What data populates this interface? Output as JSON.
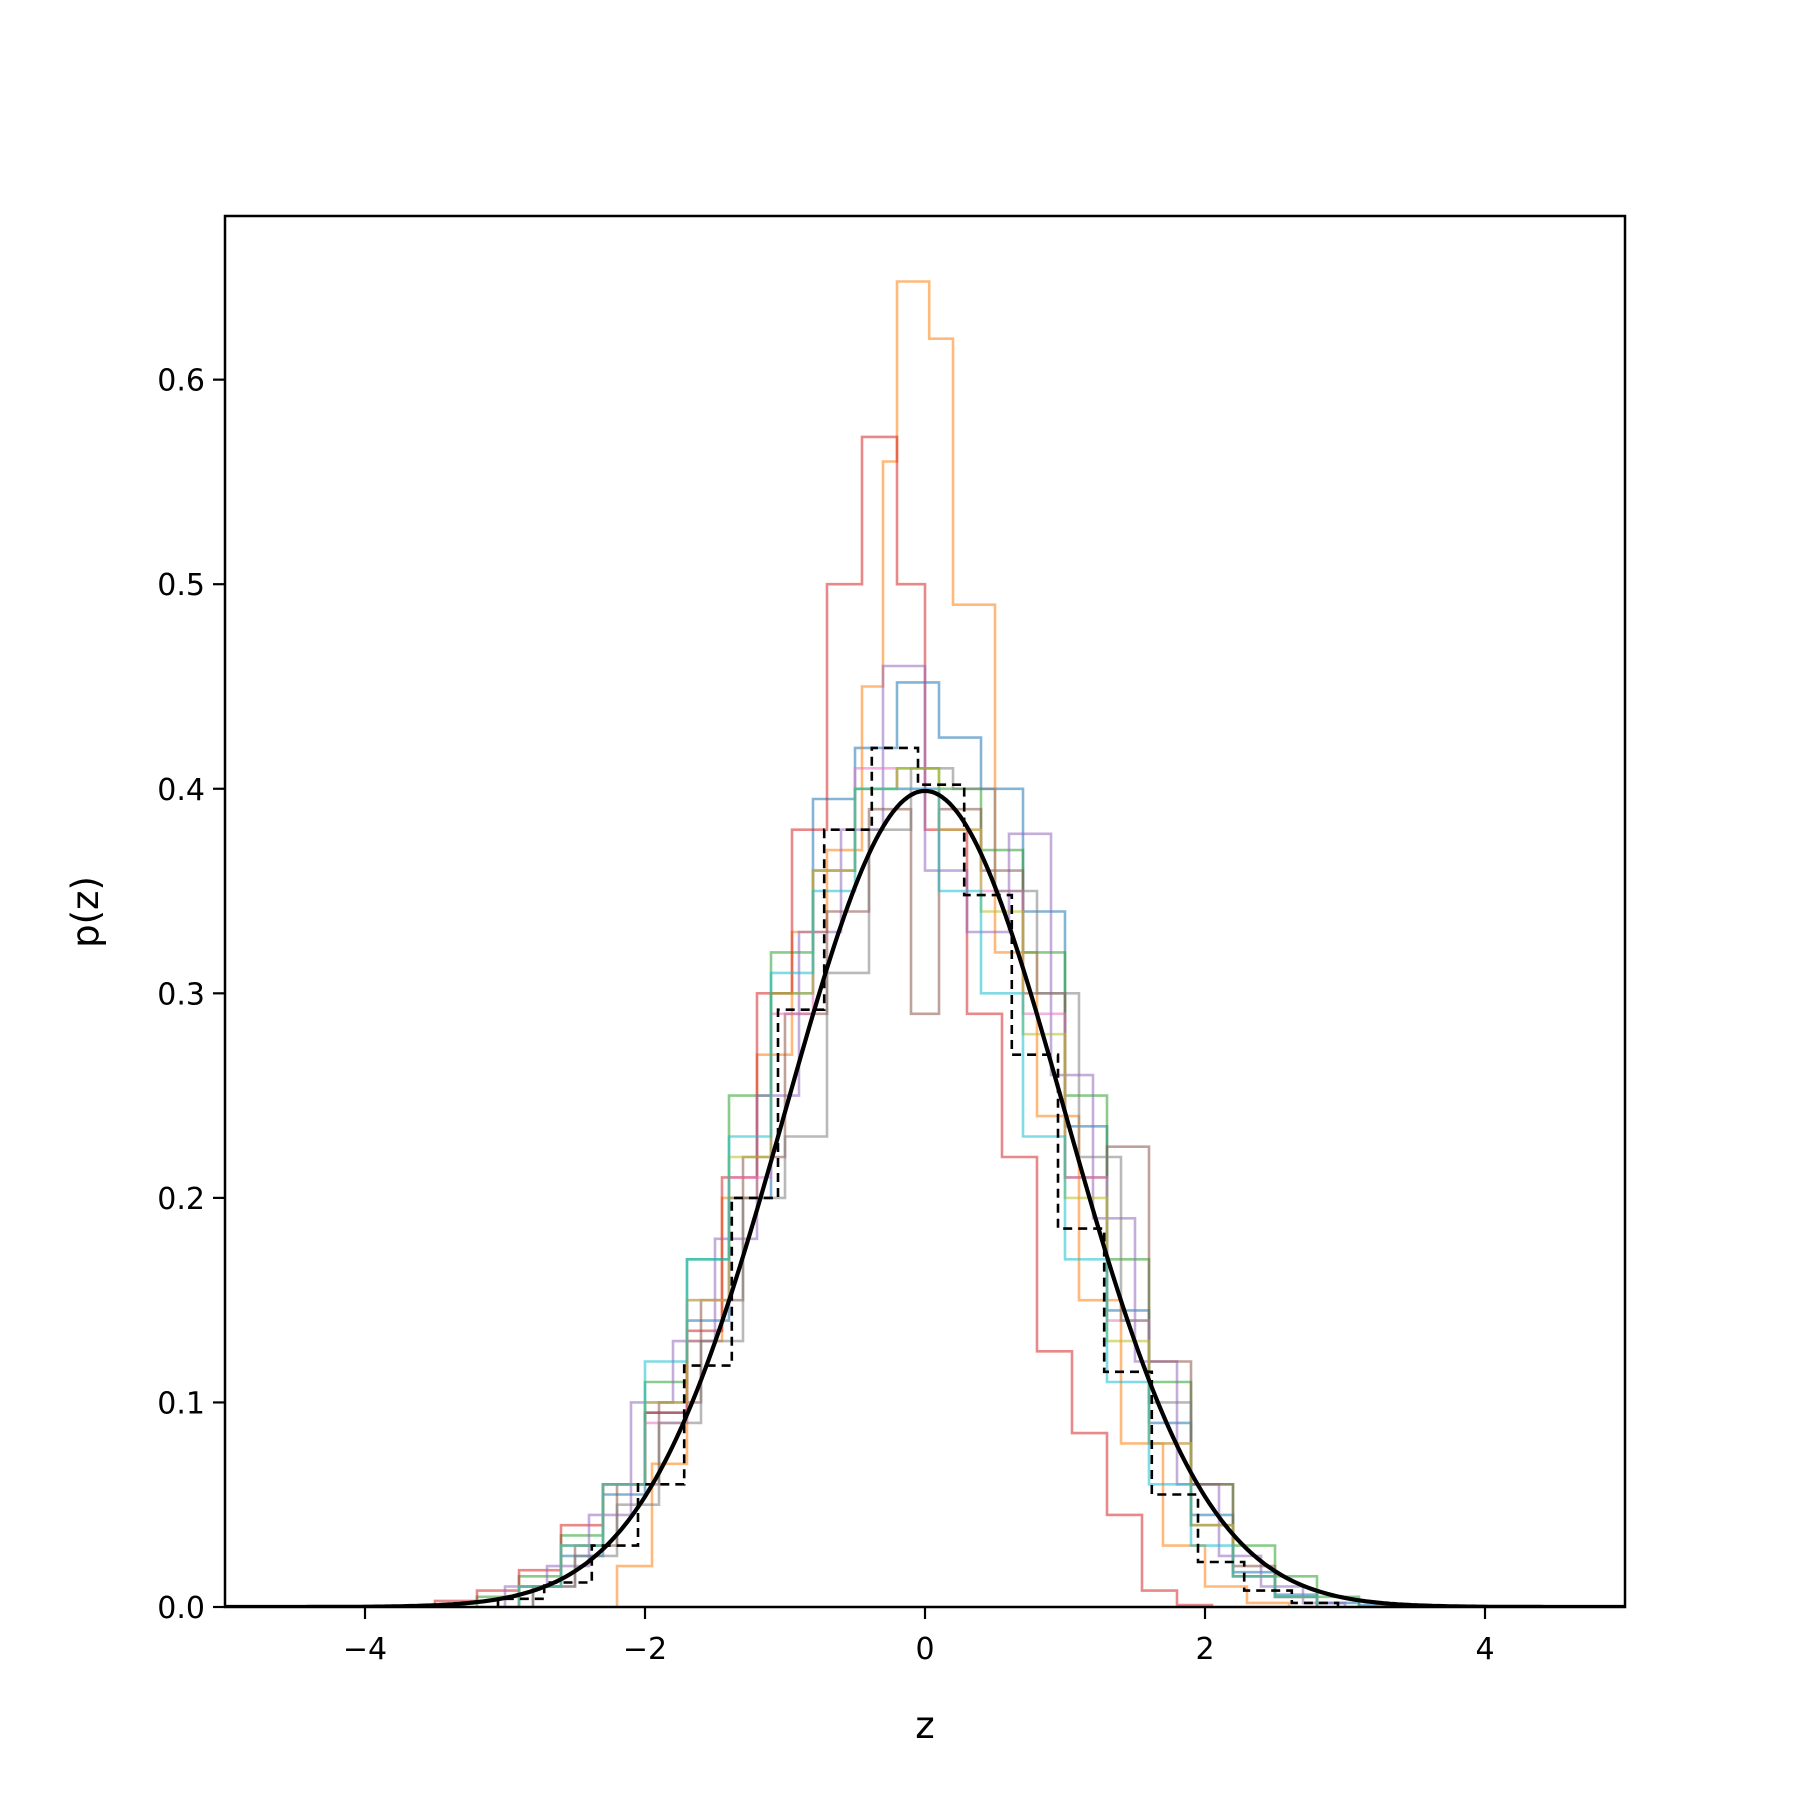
{
  "chart_data": {
    "type": "histogram",
    "xlabel": "z",
    "ylabel": "p(z)",
    "xlim": [
      -5,
      5
    ],
    "ylim": [
      0,
      0.68
    ],
    "grid": false,
    "legend": "none",
    "xticks": [
      -4,
      -2,
      0,
      2,
      4
    ],
    "xtick_labels": [
      "−4",
      "−2",
      "0",
      "2",
      "4"
    ],
    "yticks": [
      0.0,
      0.1,
      0.2,
      0.3,
      0.4,
      0.5,
      0.6
    ],
    "ytick_labels": [
      "0.0",
      "0.1",
      "0.2",
      "0.3",
      "0.4",
      "0.5",
      "0.6"
    ],
    "reference_curve": {
      "style": "solid",
      "color": "#000000",
      "mean": 0,
      "std": 1,
      "x_range": [
        -5,
        5
      ]
    },
    "reference_histogram": {
      "style": "dashed",
      "color": "#000000",
      "bin_edges": [
        -3.05,
        -2.72,
        -2.38,
        -2.05,
        -1.72,
        -1.38,
        -1.05,
        -0.72,
        -0.38,
        -0.05,
        0.28,
        0.62,
        0.95,
        1.28,
        1.62,
        1.95,
        2.28,
        2.62,
        2.95
      ],
      "values": [
        0.004,
        0.012,
        0.03,
        0.06,
        0.118,
        0.2,
        0.292,
        0.38,
        0.42,
        0.402,
        0.348,
        0.27,
        0.185,
        0.115,
        0.055,
        0.022,
        0.008,
        0.002
      ]
    },
    "series": [
      {
        "color": "#1f77b4",
        "bin_edges": [
          -2.9,
          -2.6,
          -2.3,
          -2.0,
          -1.7,
          -1.4,
          -1.1,
          -0.8,
          -0.5,
          -0.2,
          0.1,
          0.4,
          0.7,
          1.0,
          1.3,
          1.6,
          1.9,
          2.2,
          2.5,
          2.8,
          3.1,
          3.55
        ],
        "values": [
          0.01,
          0.025,
          0.055,
          0.095,
          0.14,
          0.2,
          0.3,
          0.395,
          0.42,
          0.452,
          0.425,
          0.4,
          0.34,
          0.235,
          0.145,
          0.09,
          0.045,
          0.017,
          0.006,
          0.002,
          0.001
        ]
      },
      {
        "color": "#ff7f0e",
        "bin_edges": [
          -2.2,
          -1.95,
          -1.7,
          -1.45,
          -1.2,
          -0.95,
          -0.7,
          -0.45,
          -0.3,
          -0.2,
          0.03,
          0.2,
          0.5,
          0.8,
          1.1,
          1.4,
          1.7,
          2.0,
          2.3,
          2.6
        ],
        "values": [
          0.02,
          0.07,
          0.13,
          0.2,
          0.27,
          0.33,
          0.37,
          0.45,
          0.56,
          0.648,
          0.62,
          0.49,
          0.32,
          0.24,
          0.15,
          0.08,
          0.03,
          0.01,
          0.002
        ]
      },
      {
        "color": "#2ca02c",
        "bin_edges": [
          -3.2,
          -2.9,
          -2.6,
          -2.3,
          -2.0,
          -1.7,
          -1.4,
          -1.1,
          -0.8,
          -0.5,
          -0.2,
          0.1,
          0.4,
          0.7,
          1.0,
          1.3,
          1.6,
          1.9,
          2.2,
          2.5,
          2.8,
          3.1
        ],
        "values": [
          0.005,
          0.015,
          0.035,
          0.06,
          0.11,
          0.17,
          0.25,
          0.32,
          0.36,
          0.4,
          0.41,
          0.4,
          0.37,
          0.32,
          0.25,
          0.17,
          0.11,
          0.06,
          0.03,
          0.015,
          0.005
        ]
      },
      {
        "color": "#d62728",
        "bin_edges": [
          -3.5,
          -3.2,
          -2.9,
          -2.6,
          -2.3,
          -2.0,
          -1.7,
          -1.45,
          -1.2,
          -0.95,
          -0.7,
          -0.45,
          -0.2,
          0.0,
          0.3,
          0.55,
          0.8,
          1.05,
          1.3,
          1.55,
          1.8,
          2.05
        ],
        "values": [
          0.003,
          0.008,
          0.018,
          0.04,
          0.06,
          0.095,
          0.135,
          0.21,
          0.3,
          0.38,
          0.5,
          0.572,
          0.5,
          0.38,
          0.29,
          0.22,
          0.125,
          0.085,
          0.045,
          0.008,
          0.001
        ]
      },
      {
        "color": "#9467bd",
        "bin_edges": [
          -3.0,
          -2.7,
          -2.4,
          -2.1,
          -1.8,
          -1.5,
          -1.2,
          -0.9,
          -0.6,
          -0.3,
          0.0,
          0.3,
          0.6,
          0.9,
          1.2,
          1.5,
          1.8,
          2.1,
          2.4,
          2.7,
          3.0
        ],
        "values": [
          0.01,
          0.02,
          0.045,
          0.1,
          0.13,
          0.18,
          0.25,
          0.33,
          0.38,
          0.46,
          0.36,
          0.33,
          0.378,
          0.26,
          0.19,
          0.12,
          0.06,
          0.025,
          0.01,
          0.002
        ]
      },
      {
        "color": "#8c564b",
        "bin_edges": [
          -2.8,
          -2.5,
          -2.2,
          -1.9,
          -1.6,
          -1.3,
          -1.0,
          -0.7,
          -0.4,
          -0.1,
          0.1,
          0.4,
          0.7,
          1.0,
          1.3,
          1.6,
          1.9,
          2.2,
          2.5,
          2.8
        ],
        "values": [
          0.01,
          0.03,
          0.06,
          0.1,
          0.15,
          0.22,
          0.29,
          0.34,
          0.39,
          0.29,
          0.39,
          0.36,
          0.3,
          0.21,
          0.225,
          0.12,
          0.06,
          0.02,
          0.005
        ]
      },
      {
        "color": "#e377c2",
        "bin_edges": [
          -2.9,
          -2.6,
          -2.3,
          -2.0,
          -1.7,
          -1.4,
          -1.1,
          -0.8,
          -0.5,
          -0.2,
          0.1,
          0.4,
          0.7,
          1.0,
          1.3,
          1.6,
          1.9,
          2.2,
          2.5,
          2.8
        ],
        "values": [
          0.01,
          0.03,
          0.06,
          0.09,
          0.15,
          0.21,
          0.29,
          0.36,
          0.41,
          0.4,
          0.38,
          0.35,
          0.29,
          0.21,
          0.14,
          0.08,
          0.04,
          0.015,
          0.005
        ]
      },
      {
        "color": "#7f7f7f",
        "bin_edges": [
          -2.8,
          -2.5,
          -2.2,
          -1.9,
          -1.6,
          -1.3,
          -1.0,
          -0.7,
          -0.4,
          -0.1,
          0.2,
          0.5,
          0.8,
          1.1,
          1.4,
          1.6,
          1.9,
          2.2,
          2.5,
          2.8
        ],
        "values": [
          0.01,
          0.025,
          0.05,
          0.09,
          0.13,
          0.2,
          0.23,
          0.31,
          0.38,
          0.41,
          0.4,
          0.35,
          0.3,
          0.22,
          0.14,
          0.1,
          0.04,
          0.015,
          0.005
        ]
      },
      {
        "color": "#bcbd22",
        "bin_edges": [
          -2.9,
          -2.6,
          -2.3,
          -2.0,
          -1.7,
          -1.4,
          -1.1,
          -0.8,
          -0.5,
          -0.2,
          0.1,
          0.4,
          0.7,
          1.0,
          1.3,
          1.6,
          1.9,
          2.2,
          2.5,
          2.8
        ],
        "values": [
          0.01,
          0.03,
          0.06,
          0.1,
          0.15,
          0.22,
          0.3,
          0.36,
          0.4,
          0.41,
          0.38,
          0.34,
          0.28,
          0.2,
          0.13,
          0.08,
          0.04,
          0.015,
          0.005
        ]
      },
      {
        "color": "#17becf",
        "bin_edges": [
          -2.9,
          -2.6,
          -2.3,
          -2.0,
          -1.7,
          -1.4,
          -1.1,
          -0.8,
          -0.5,
          -0.2,
          0.1,
          0.4,
          0.7,
          1.0,
          1.3,
          1.6,
          1.9,
          2.2,
          2.5,
          2.8
        ],
        "values": [
          0.01,
          0.03,
          0.06,
          0.12,
          0.17,
          0.23,
          0.31,
          0.35,
          0.4,
          0.4,
          0.35,
          0.3,
          0.23,
          0.17,
          0.11,
          0.06,
          0.03,
          0.015,
          0.005
        ]
      }
    ]
  }
}
